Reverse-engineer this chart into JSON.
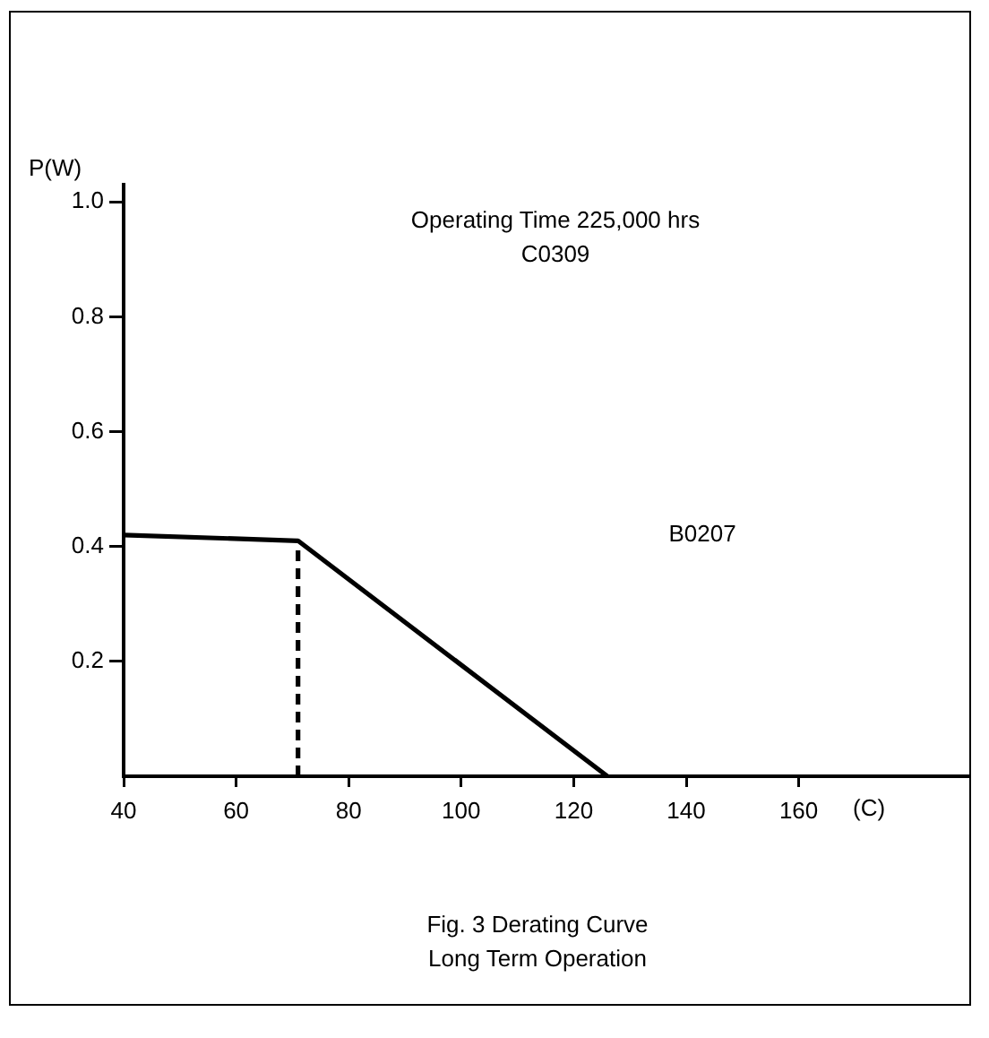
{
  "chart_data": {
    "type": "line",
    "title": "Fig. 3 Derating Curve",
    "subtitle": "Long Term Operation",
    "xlabel": "(C)",
    "ylabel": "P(W)",
    "annotations": [
      "Operating Time 225,000 hrs",
      "C0309",
      "B0207"
    ],
    "series": [
      {
        "color": "#000000",
        "x": [
          40,
          71,
          126
        ],
        "values": [
          0.42,
          0.41,
          0
        ]
      },
      {
        "color": "#000000",
        "x": [
          71,
          71
        ],
        "values": [
          0,
          0.41
        ],
        "line_style": "dashed"
      }
    ],
    "xlim": [
      40,
      190
    ],
    "xticks": [
      40,
      60,
      80,
      100,
      120,
      140,
      160
    ],
    "ylim": [
      0,
      1.03
    ],
    "yticks": [
      0.2,
      0.4,
      0.6,
      0.8,
      {
        "value": 1,
        "label": "1.0"
      }
    ],
    "grid": false,
    "legend": false,
    "marker": "none"
  }
}
